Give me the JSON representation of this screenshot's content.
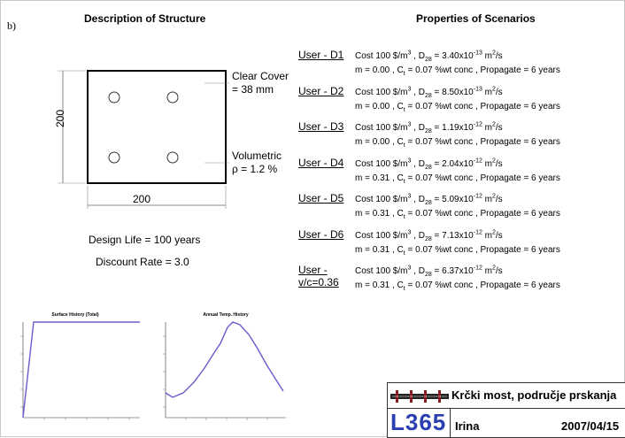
{
  "section_label": "b)",
  "description": {
    "heading": "Description of Structure",
    "clear_cover_line1": "Clear Cover",
    "clear_cover_line2": "= 38 mm",
    "volumetric_line1": "Volumetric",
    "volumetric_line2": "ρ = 1.2 %",
    "width_label": "200",
    "height_label": "200",
    "design_life": "Design Life = 100 years",
    "discount_rate": "Discount Rate = 3.0"
  },
  "properties": {
    "heading": "Properties of Scenarios",
    "scenarios": [
      {
        "user": "User - D1",
        "cost_pre": "Cost   100 $/m",
        "d28": "3.40x10",
        "d28_exp": "-13",
        "m": "m = 0.00",
        "ct": "C",
        "ct_rest": " = 0.07 %wt conc",
        "propagate": "Propagate =  6 years"
      },
      {
        "user": "User - D2",
        "cost_pre": "Cost   100 $/m",
        "d28": "8.50x10",
        "d28_exp": "-13",
        "m": "m = 0.00",
        "ct": "C",
        "ct_rest": " = 0.07 %wt conc",
        "propagate": "Propagate =  6 years"
      },
      {
        "user": "User - D3",
        "cost_pre": "Cost   100 $/m",
        "d28": "1.19x10",
        "d28_exp": "-12",
        "m": "m = 0.00",
        "ct": "C",
        "ct_rest": " = 0.07 %wt conc",
        "propagate": "Propagate =  6 years"
      },
      {
        "user": "User - D4",
        "cost_pre": "Cost   100 $/m",
        "d28": "2.04x10",
        "d28_exp": "-12",
        "m": "m = 0.31",
        "ct": "C",
        "ct_rest": " = 0.07 %wt conc",
        "propagate": "Propagate =  6 years"
      },
      {
        "user": "User - D5",
        "cost_pre": "Cost   100 $/m",
        "d28": "5.09x10",
        "d28_exp": "-12",
        "m": "m = 0.31",
        "ct": "C",
        "ct_rest": " = 0.07 %wt conc",
        "propagate": "Propagate =  6 years"
      },
      {
        "user": "User - D6",
        "cost_pre": "Cost   100 $/m",
        "d28": "7.13x10",
        "d28_exp": "-12",
        "m": "m = 0.31",
        "ct": "C",
        "ct_rest": " = 0.07 %wt conc",
        "propagate": "Propagate =  6 years"
      },
      {
        "user": "User - v/c=0.36",
        "cost_pre": "Cost   100 $/m",
        "d28": "6.37x10",
        "d28_exp": "-12",
        "m": "m = 0.31",
        "ct": "C",
        "ct_rest": " = 0.07 %wt conc",
        "propagate": "Propagate =  6 years"
      }
    ]
  },
  "charts": {
    "surface_title": "Surface History (Total)",
    "temp_title": "Annual Temp. History"
  },
  "footer": {
    "title": "Krčki most, područje prskanja",
    "code": "L365",
    "author": "Irina",
    "date": "2007/04/15"
  },
  "colors": {
    "line": "#6a5acd",
    "code": "#2a3fb0"
  }
}
